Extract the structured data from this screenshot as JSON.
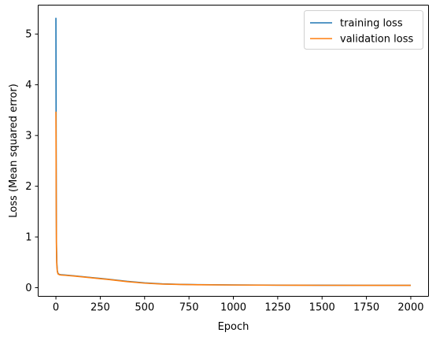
{
  "chart_data": {
    "type": "line",
    "title": "",
    "xlabel": "Epoch",
    "ylabel": "Loss (Mean squared error)",
    "xlim": [
      -100,
      2100
    ],
    "ylim": [
      -0.17,
      5.57
    ],
    "xticks": [
      0,
      250,
      500,
      750,
      1000,
      1250,
      1500,
      1750,
      2000
    ],
    "xtick_labels": [
      "0",
      "250",
      "500",
      "750",
      "1000",
      "1250",
      "1500",
      "1750",
      "2000"
    ],
    "yticks": [
      0,
      1,
      2,
      3,
      4,
      5
    ],
    "ytick_labels": [
      "0",
      "1",
      "2",
      "3",
      "4",
      "5"
    ],
    "grid": false,
    "legend": {
      "placement": "top-right"
    },
    "series": [
      {
        "name": "training loss",
        "color": "#1f77b4",
        "x": [
          0,
          1,
          2,
          3,
          5,
          8,
          12,
          20,
          30,
          50,
          100,
          200,
          300,
          400,
          500,
          600,
          700,
          800,
          1000,
          1250,
          1500,
          1750,
          2000
        ],
        "y": [
          5.32,
          3.5,
          1.8,
          0.9,
          0.5,
          0.33,
          0.28,
          0.26,
          0.255,
          0.25,
          0.235,
          0.2,
          0.165,
          0.125,
          0.095,
          0.075,
          0.065,
          0.06,
          0.055,
          0.05,
          0.048,
          0.047,
          0.046
        ]
      },
      {
        "name": "validation loss",
        "color": "#ff7f0e",
        "x": [
          0,
          1,
          2,
          3,
          5,
          8,
          12,
          20,
          30,
          50,
          100,
          200,
          300,
          400,
          500,
          600,
          700,
          800,
          1000,
          1250,
          1500,
          1750,
          2000
        ],
        "y": [
          3.47,
          2.6,
          1.5,
          0.8,
          0.45,
          0.32,
          0.27,
          0.255,
          0.25,
          0.245,
          0.23,
          0.195,
          0.16,
          0.12,
          0.09,
          0.072,
          0.063,
          0.058,
          0.053,
          0.049,
          0.047,
          0.046,
          0.046
        ]
      }
    ]
  }
}
